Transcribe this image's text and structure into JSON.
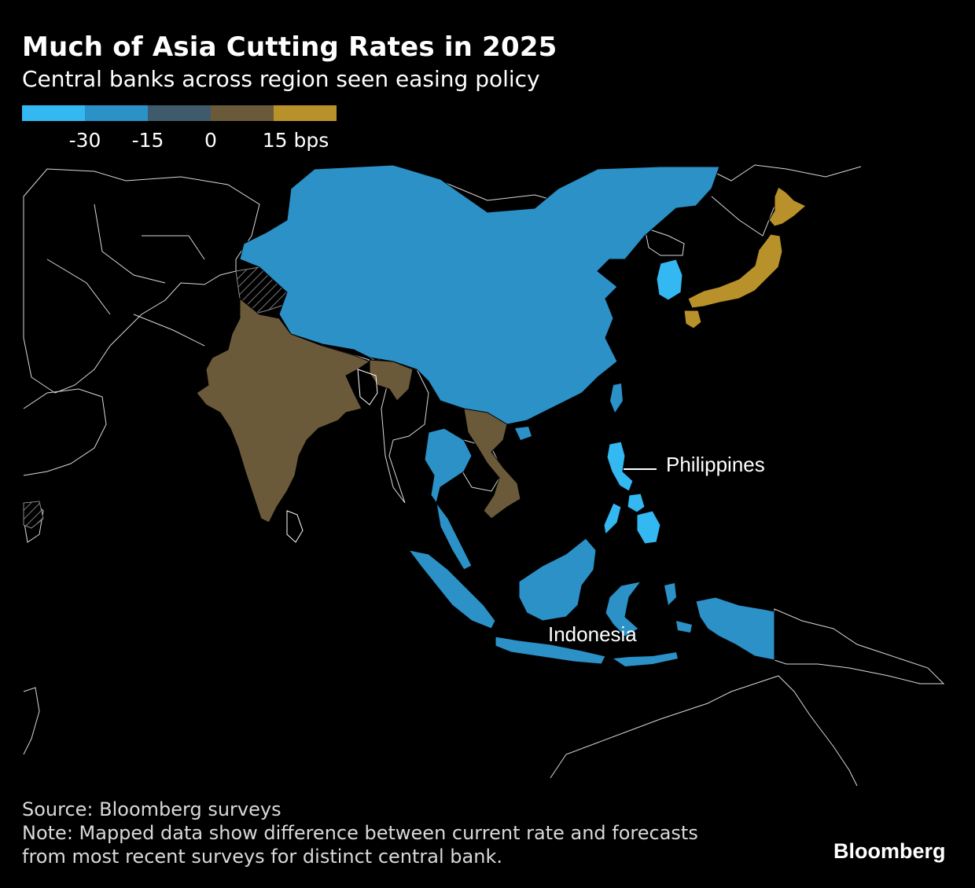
{
  "header": {
    "title": "Much of Asia Cutting Rates in 2025",
    "subtitle": "Central banks across region seen easing policy"
  },
  "legend": {
    "swatches": [
      "#33b8f2",
      "#2b91c7",
      "#3e5a6b",
      "#6b5a3a",
      "#b8912a"
    ],
    "labels": [
      "-30",
      "-15",
      "0",
      "15 bps"
    ]
  },
  "map": {
    "colors": {
      "very_negative": "#33b8f2",
      "negative": "#2b91c7",
      "positive": "#6b5a3a",
      "very_positive": "#b8912a",
      "outline": "#ffffff"
    },
    "callouts": {
      "philippines": "Philippines",
      "indonesia": "Indonesia"
    }
  },
  "footer": {
    "source": "Source: Bloomberg surveys",
    "note_line1": "Note: Mapped data show difference between current rate and forecasts",
    "note_line2": "from most recent surveys for distinct central bank."
  },
  "brand": "Bloomberg"
}
